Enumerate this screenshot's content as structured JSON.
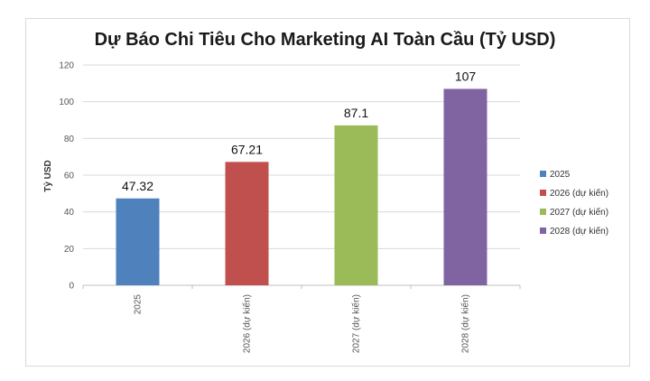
{
  "chart_data": {
    "type": "bar",
    "title": "Dự Báo Chi Tiêu Cho Marketing AI Toàn Cầu (Tỷ USD)",
    "xlabel": "",
    "ylabel": "Tỷ USD",
    "ylim": [
      0,
      120
    ],
    "yticks": [
      0,
      20,
      40,
      60,
      80,
      100,
      120
    ],
    "categories": [
      "2025",
      "2026 (dự kiến)",
      "2027 (dự kiến)",
      "2028 (dự kiến)"
    ],
    "values": [
      47.32,
      67.21,
      87.1,
      107
    ],
    "value_labels": [
      "47.32",
      "67.21",
      "87.1",
      "107"
    ],
    "colors": [
      "#4f81bd",
      "#c0504d",
      "#9bbb59",
      "#8064a2"
    ],
    "grid": true,
    "legend": {
      "placement": "right",
      "entries": [
        "2025",
        "2026 (dự kiến)",
        "2027 (dự kiến)",
        "2028 (dự kiến)"
      ]
    }
  }
}
